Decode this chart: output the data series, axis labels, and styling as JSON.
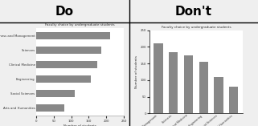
{
  "categories": [
    "Business and Management",
    "Sciences",
    "Clinical Medicine",
    "Engineering",
    "Social Sciences",
    "Arts and Humanities"
  ],
  "values": [
    210,
    185,
    175,
    155,
    110,
    80
  ],
  "bar_color": "#888888",
  "title_do": "Faculty choice by undergraduate students",
  "title_dont": "Faculty choice by undergraduate students",
  "xlabel_do": "Number of students",
  "ylabel_dont": "Number of students",
  "header_do": "Do",
  "header_dont": "Don't",
  "xlim_do": [
    0,
    250
  ],
  "xticks_do": [
    0,
    50,
    100,
    150,
    200,
    250
  ],
  "ylim_dont": [
    0,
    250
  ],
  "yticks_dont": [
    0,
    50,
    100,
    150,
    200,
    250
  ],
  "bg_color": "#efefef",
  "panel_bg": "#ffffff"
}
